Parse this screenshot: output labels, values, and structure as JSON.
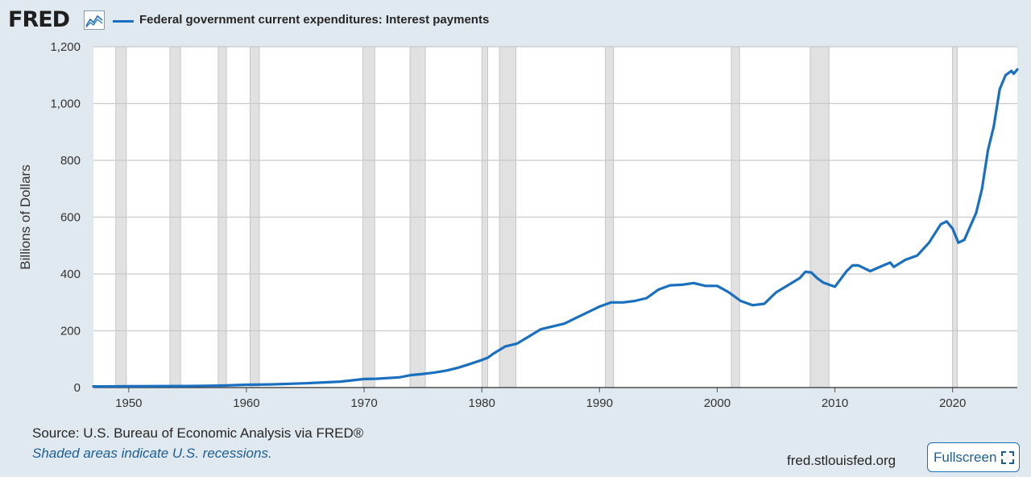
{
  "header": {
    "logo": "FRED",
    "logo_icon": "trend-chart-icon",
    "legend_label": "Federal government current expenditures: Interest payments"
  },
  "footer": {
    "source": "Source: U.S. Bureau of Economic Analysis via FRED®",
    "note": "Shaded areas indicate U.S. recessions.",
    "site": "fred.stlouisfed.org",
    "fullscreen_label": "Fullscreen",
    "fullscreen_icon": "expand-icon"
  },
  "colors": {
    "line": "#1a70bf",
    "background": "#e1e9f0",
    "plot": "#ffffff",
    "recession": "#e1e1e1",
    "grid": "#c9c9c9"
  },
  "chart_data": {
    "type": "line",
    "title": "",
    "xlabel": "",
    "ylabel": "Billions of Dollars",
    "xlim": [
      1947,
      2025.5
    ],
    "ylim": [
      0,
      1200
    ],
    "x_ticks": [
      1950,
      1960,
      1970,
      1980,
      1990,
      2000,
      2010,
      2020
    ],
    "y_ticks": [
      0,
      200,
      400,
      600,
      800,
      1000,
      1200
    ],
    "y_tick_labels": [
      "0",
      "200",
      "400",
      "600",
      "800",
      "1,000",
      "1,200"
    ],
    "grid": true,
    "legend_position": "top-left",
    "recessions": [
      [
        1948.9,
        1949.8
      ],
      [
        1953.5,
        1954.4
      ],
      [
        1957.6,
        1958.3
      ],
      [
        1960.3,
        1961.1
      ],
      [
        1969.9,
        1970.9
      ],
      [
        1973.9,
        1975.2
      ],
      [
        1980.0,
        1980.5
      ],
      [
        1981.5,
        1982.9
      ],
      [
        1990.5,
        1991.2
      ],
      [
        2001.2,
        2001.9
      ],
      [
        2007.9,
        2009.5
      ],
      [
        2020.0,
        2020.4
      ]
    ],
    "series": [
      {
        "name": "Federal government current expenditures: Interest payments",
        "x": [
          1947,
          1950,
          1955,
          1958,
          1960,
          1962,
          1965,
          1968,
          1970,
          1971,
          1973,
          1974,
          1975,
          1976,
          1977,
          1978,
          1979,
          1980,
          1980.5,
          1981,
          1982,
          1983,
          1984,
          1985,
          1986,
          1987,
          1988,
          1989,
          1990,
          1991,
          1992,
          1993,
          1994,
          1995,
          1996,
          1997,
          1998,
          1999,
          2000,
          2001,
          2002,
          2003,
          2004,
          2005,
          2006,
          2007,
          2007.5,
          2008,
          2008.5,
          2009,
          2010,
          2011,
          2011.5,
          2012,
          2013,
          2014,
          2014.7,
          2015,
          2016,
          2017,
          2018,
          2019,
          2019.5,
          2020,
          2020.5,
          2021,
          2022,
          2022.5,
          2023,
          2023.5,
          2024,
          2024.5,
          2025,
          2025.2,
          2025.5
        ],
        "values": [
          4,
          4.5,
          5.5,
          7,
          10,
          11,
          15,
          21,
          30,
          31,
          36,
          44,
          48,
          53,
          60,
          70,
          83,
          97,
          105,
          120,
          145,
          155,
          180,
          205,
          215,
          225,
          245,
          265,
          285,
          300,
          300,
          305,
          315,
          345,
          360,
          362,
          368,
          358,
          358,
          335,
          305,
          290,
          295,
          335,
          360,
          385,
          408,
          405,
          385,
          370,
          355,
          410,
          430,
          430,
          410,
          428,
          440,
          425,
          450,
          465,
          510,
          575,
          585,
          560,
          510,
          520,
          615,
          700,
          835,
          920,
          1050,
          1100,
          1115,
          1105,
          1120
        ]
      }
    ]
  }
}
